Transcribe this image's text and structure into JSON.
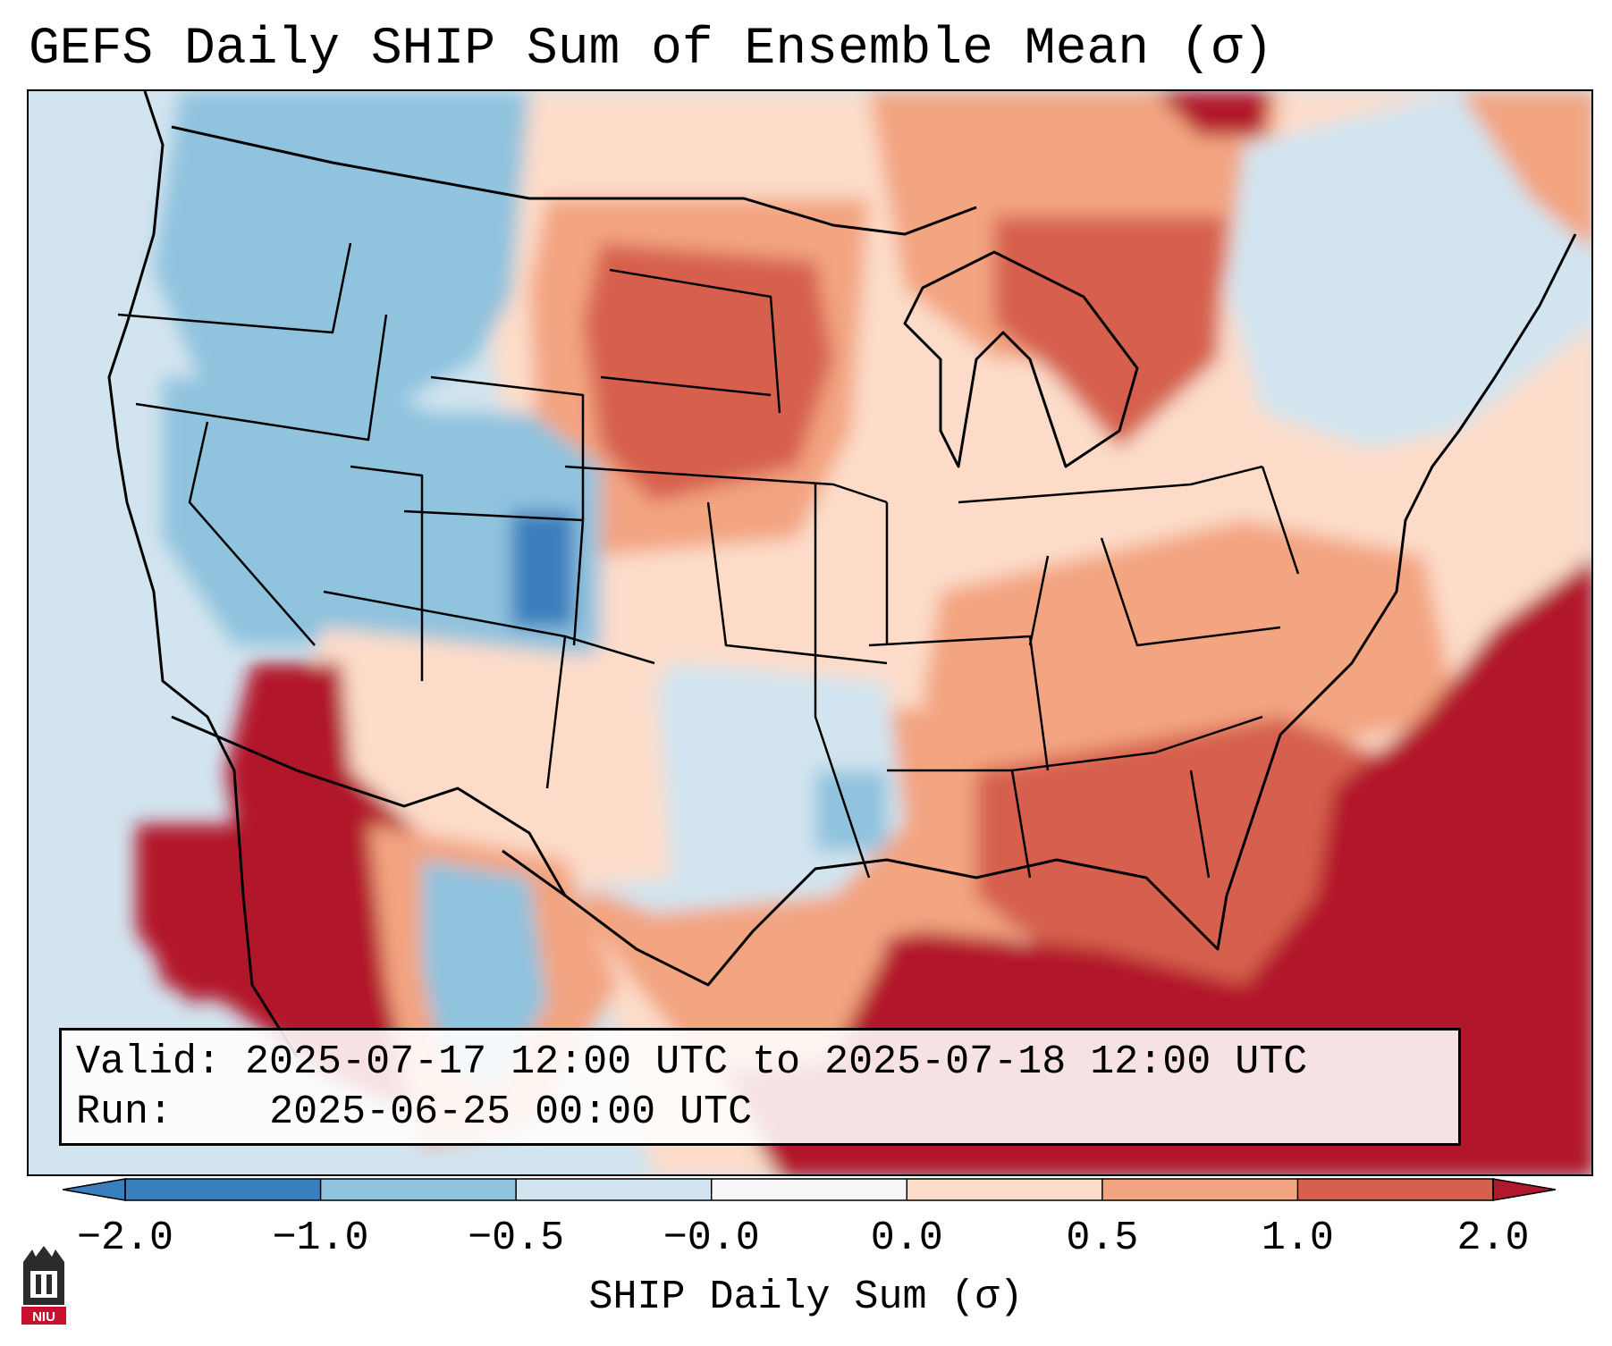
{
  "title": "GEFS Daily SHIP Sum of Ensemble Mean (σ)",
  "info": {
    "valid_label": "Valid:",
    "valid_value": "2025-07-17 12:00 UTC to 2025-07-18 12:00 UTC",
    "run_label": "Run:",
    "run_value": "2025-06-25 00:00 UTC"
  },
  "colorbar": {
    "label": "SHIP Daily Sum (σ)",
    "ticks": [
      "−2.0",
      "−1.0",
      "−0.5",
      "−0.0",
      "0.0",
      "0.5",
      "1.0",
      "2.0"
    ],
    "colors": [
      "#3a7fbd",
      "#90c3de",
      "#d2e4ef",
      "#f7f7f7",
      "#fcdcc9",
      "#f3a481",
      "#d6604d",
      "#b2182b"
    ]
  },
  "logo": {
    "text": "NIU"
  },
  "regions": [
    {
      "name": "pacific-northwest",
      "category": "-1.0"
    },
    {
      "name": "great-basin",
      "category": "-1.0"
    },
    {
      "name": "colorado-rockies",
      "category": "-2.0"
    },
    {
      "name": "northern-plains",
      "category": "1.0"
    },
    {
      "name": "southern-plains",
      "category": "-0.5"
    },
    {
      "name": "mississippi-valley",
      "category": "0.5"
    },
    {
      "name": "gulf-of-mexico",
      "category": "2.0"
    },
    {
      "name": "southeast-atlantic",
      "category": "2.0"
    },
    {
      "name": "desert-southwest",
      "category": "2.0"
    },
    {
      "name": "great-lakes",
      "category": "1.0"
    },
    {
      "name": "new-england",
      "category": "-0.0"
    }
  ]
}
